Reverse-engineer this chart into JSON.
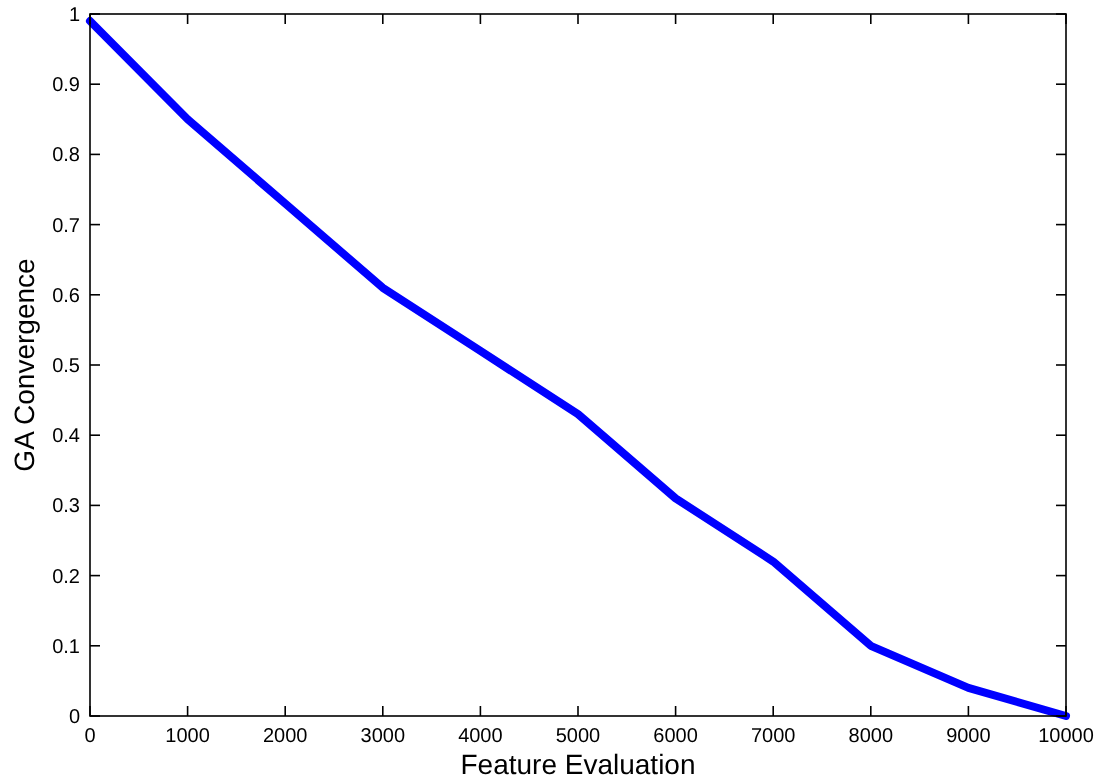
{
  "chart_data": {
    "type": "line",
    "xlabel": "Feature Evaluation",
    "ylabel": "GA Convergence",
    "x": [
      0,
      1000,
      2000,
      3000,
      4000,
      5000,
      6000,
      7000,
      8000,
      9000,
      10000
    ],
    "series": [
      {
        "color": "#0000ff",
        "values": [
          0.99,
          0.85,
          0.73,
          0.61,
          0.52,
          0.43,
          0.31,
          0.22,
          0.1,
          0.04,
          0.0
        ]
      }
    ],
    "xlim": [
      0,
      10000
    ],
    "xticks": [
      0,
      1000,
      2000,
      3000,
      4000,
      5000,
      6000,
      7000,
      8000,
      9000,
      10000
    ],
    "ylim": [
      0,
      1
    ],
    "yticks": [
      0,
      0.1,
      0.2,
      0.3,
      0.4,
      0.5,
      0.6,
      0.7,
      0.8,
      0.9,
      1
    ],
    "grid": false,
    "marker": "none",
    "line_style": "solid"
  }
}
